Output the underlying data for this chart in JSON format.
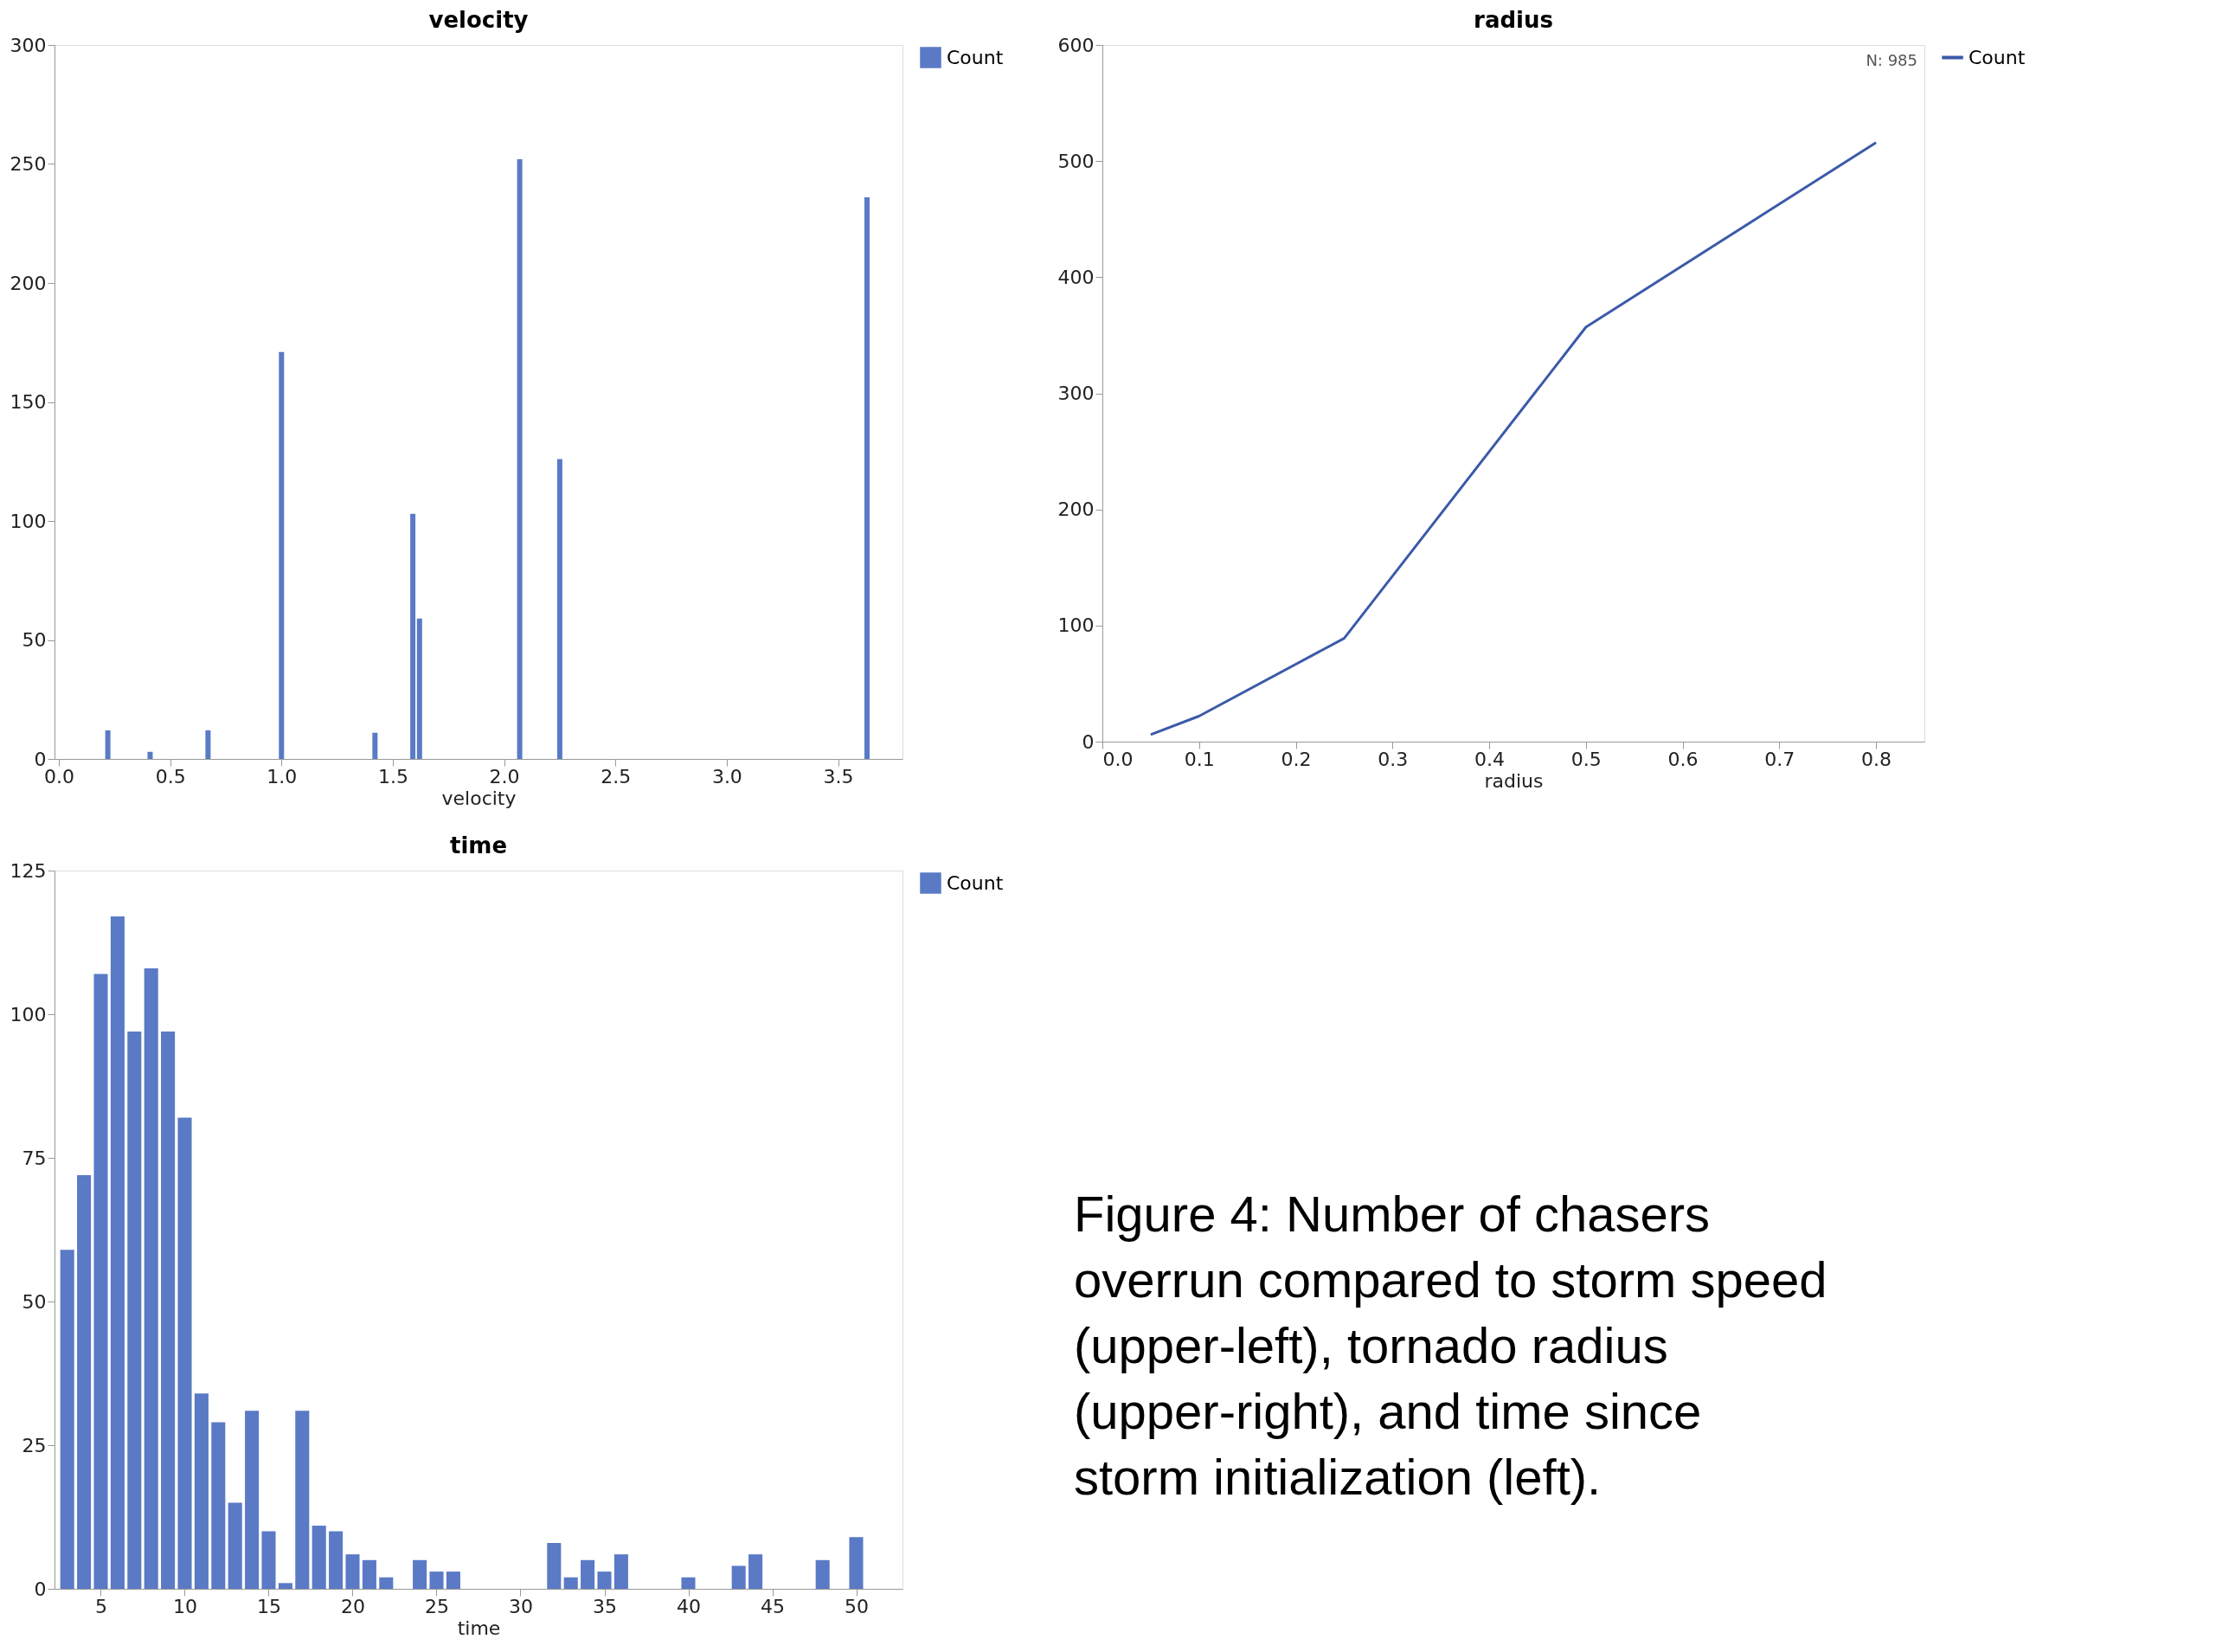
{
  "chart_data": [
    {
      "type": "bar",
      "title": "velocity",
      "xlabel": "velocity",
      "legend": "top right",
      "grid": false,
      "x": [
        0.22,
        0.41,
        0.67,
        1.0,
        1.42,
        1.59,
        1.62,
        2.07,
        2.25,
        3.63
      ],
      "series": [
        {
          "name": "Count",
          "color": "#5a7ac6",
          "values": [
            12,
            3,
            12,
            171,
            11,
            103,
            59,
            252,
            126,
            236
          ]
        }
      ],
      "xlim": [
        0,
        3.77
      ],
      "xticks": [
        {
          "value": 0,
          "label": "0.0"
        },
        {
          "value": 0.5,
          "label": "0.5"
        },
        {
          "value": 1,
          "label": "1.0"
        },
        {
          "value": 1.5,
          "label": "1.5"
        },
        {
          "value": 2,
          "label": "2.0"
        },
        {
          "value": 2.5,
          "label": "2.5"
        },
        {
          "value": 3,
          "label": "3.0"
        },
        {
          "value": 3.5,
          "label": "3.5"
        }
      ],
      "ylim": [
        0,
        300
      ],
      "yticks": [
        0,
        50,
        100,
        150,
        200,
        250,
        300
      ]
    },
    {
      "type": "line",
      "title": "radius",
      "xlabel": "radius",
      "legend": "top right",
      "grid": false,
      "marker": "none",
      "line_style": "solid",
      "annotations": [
        "N: 985"
      ],
      "x": [
        0.05,
        0.1,
        0.25,
        0.5,
        0.8
      ],
      "series": [
        {
          "name": "Count",
          "color": "#3b5aa8",
          "values": [
            6,
            22,
            89,
            357,
            516
          ]
        }
      ],
      "xlim": [
        0,
        0.85
      ],
      "xticks": [
        {
          "value": 0,
          "label": "0.0"
        },
        0.1,
        0.2,
        0.3,
        0.4,
        0.5,
        0.6,
        0.7,
        0.8
      ],
      "ylim": [
        0,
        600
      ],
      "yticks": [
        0,
        100,
        200,
        300,
        400,
        500,
        600
      ]
    },
    {
      "type": "bar",
      "title": "time",
      "xlabel": "time",
      "legend": "top right",
      "grid": false,
      "x": [
        3,
        4,
        5,
        6,
        7,
        8,
        9,
        10,
        11,
        12,
        13,
        14,
        15,
        16,
        17,
        18,
        19,
        20,
        21,
        22,
        23,
        24,
        25,
        26,
        27,
        28,
        29,
        30,
        31,
        32,
        33,
        34,
        35,
        36,
        37,
        38,
        39,
        40,
        41,
        42,
        43,
        44,
        45,
        46,
        47,
        48,
        49,
        50
      ],
      "series": [
        {
          "name": "Count",
          "color": "#5a7ac6",
          "values": [
            59,
            72,
            107,
            117,
            97,
            108,
            97,
            82,
            34,
            29,
            15,
            31,
            10,
            1,
            31,
            11,
            10,
            6,
            5,
            2,
            0,
            5,
            3,
            3,
            0,
            0,
            0,
            0,
            0,
            8,
            2,
            5,
            3,
            6,
            0,
            0,
            0,
            2,
            0,
            0,
            4,
            6,
            0,
            0,
            0,
            5,
            0,
            9
          ]
        }
      ],
      "xlim": [
        2.5,
        52.5
      ],
      "xticks": [
        5,
        10,
        15,
        20,
        25,
        30,
        35,
        40,
        45,
        50
      ],
      "ylim": [
        0,
        125
      ],
      "yticks": [
        0,
        25,
        50,
        75,
        100,
        125
      ]
    },
    {
      "type": "other",
      "annotations": [
        "Figure 4: Number of chasers overrun compared to storm speed (upper-left), tornado radius (upper-right), and time since storm initialization (left)."
      ]
    }
  ]
}
